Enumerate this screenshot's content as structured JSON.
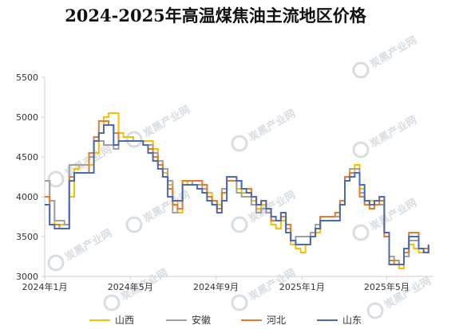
{
  "chart_data": {
    "type": "line",
    "title": "2024-2025年高温煤焦油主流地区价格",
    "xlabel": "",
    "ylabel": "",
    "ylim": [
      3000,
      5500
    ],
    "yticks": [
      3000,
      3500,
      4000,
      4500,
      5000,
      5500
    ],
    "x_tick_labels": [
      "2024年1月",
      "2024年5月",
      "2024年9月",
      "2025年1月",
      "2025年5月"
    ],
    "x_tick_weeks": [
      0,
      17.4,
      34.8,
      52.3,
      69.5
    ],
    "x_range": [
      0,
      79
    ],
    "x_unit": "week index from 2024年1月",
    "legend_position": "bottom",
    "watermark": "炭黑产业网",
    "series": [
      {
        "name": "山西",
        "color": "#f5c000",
        "values": [
          4200,
          3950,
          3650,
          3650,
          3650,
          4000,
          4350,
          4400,
          4400,
          4400,
          4550,
          4800,
          5000,
          5050,
          5050,
          4800,
          4750,
          4750,
          4700,
          4700,
          4700,
          4700,
          4600,
          4450,
          4300,
          4150,
          3950,
          3800,
          4150,
          4200,
          4150,
          4150,
          4150,
          4050,
          3950,
          3900,
          4050,
          4250,
          4250,
          4100,
          4050,
          4050,
          3950,
          3850,
          3900,
          3800,
          3650,
          3600,
          3700,
          3600,
          3400,
          3350,
          3300,
          3400,
          3500,
          3550,
          3750,
          3750,
          3750,
          3750,
          3900,
          4250,
          4300,
          4400,
          4100,
          3900,
          3950,
          3950,
          4000,
          3550,
          3200,
          3200,
          3100,
          3250,
          3400,
          3350,
          3300,
          3300,
          3400
        ]
      },
      {
        "name": "安徽",
        "color": "#a0a0a0",
        "values": [
          4200,
          3950,
          3700,
          3700,
          3650,
          4400,
          4400,
          4400,
          4400,
          4500,
          4700,
          4700,
          4650,
          4650,
          4600,
          4700,
          4700,
          4700,
          4700,
          4700,
          4650,
          4650,
          4550,
          4450,
          4350,
          4200,
          3800,
          3850,
          4200,
          4200,
          4150,
          4150,
          4100,
          4000,
          3900,
          3850,
          4100,
          4200,
          4200,
          4050,
          4000,
          4000,
          3900,
          3800,
          3850,
          3800,
          3700,
          3700,
          3750,
          3600,
          3450,
          3500,
          3500,
          3500,
          3550,
          3650,
          3750,
          3750,
          3750,
          3750,
          3950,
          4250,
          4350,
          4350,
          4050,
          3950,
          3900,
          3900,
          3900,
          3500,
          3250,
          3200,
          3150,
          3250,
          3450,
          3450,
          3350,
          3300,
          3350
        ]
      },
      {
        "name": "河北",
        "color": "#e87a2b",
        "values": [
          4000,
          3650,
          3650,
          3600,
          3600,
          4250,
          4300,
          4300,
          4300,
          4550,
          4750,
          4950,
          4950,
          4900,
          4800,
          4700,
          4700,
          4700,
          4700,
          4700,
          4650,
          4600,
          4500,
          4400,
          4250,
          4100,
          3900,
          3850,
          4200,
          4200,
          4200,
          4200,
          4150,
          4000,
          3950,
          3850,
          4050,
          4200,
          4200,
          4200,
          4100,
          4100,
          4000,
          3900,
          3950,
          3850,
          3700,
          3700,
          3750,
          3650,
          3450,
          3400,
          3400,
          3400,
          3500,
          3600,
          3750,
          3750,
          3750,
          3800,
          3950,
          4250,
          4300,
          4300,
          4000,
          3900,
          3850,
          3900,
          3950,
          3500,
          3200,
          3150,
          3150,
          3300,
          3550,
          3550,
          3350,
          3350,
          3400
        ]
      },
      {
        "name": "山东",
        "color": "#4a6bb3",
        "values": [
          3900,
          3650,
          3600,
          3600,
          3600,
          4200,
          4300,
          4300,
          4300,
          4300,
          4700,
          4800,
          4900,
          4900,
          4650,
          4700,
          4700,
          4700,
          4700,
          4700,
          4650,
          4550,
          4450,
          4350,
          4250,
          4000,
          3950,
          3950,
          4150,
          4150,
          4150,
          4100,
          4050,
          3950,
          3900,
          3800,
          3950,
          4250,
          4250,
          4200,
          4100,
          4050,
          4000,
          3900,
          3950,
          3850,
          3750,
          3700,
          3800,
          3550,
          3450,
          3400,
          3400,
          3400,
          3500,
          3600,
          3700,
          3700,
          3700,
          3700,
          3900,
          4200,
          4250,
          4300,
          4150,
          3950,
          3900,
          3950,
          4000,
          3550,
          3150,
          3150,
          3150,
          3350,
          3500,
          3500,
          3350,
          3300,
          3400
        ]
      }
    ]
  }
}
